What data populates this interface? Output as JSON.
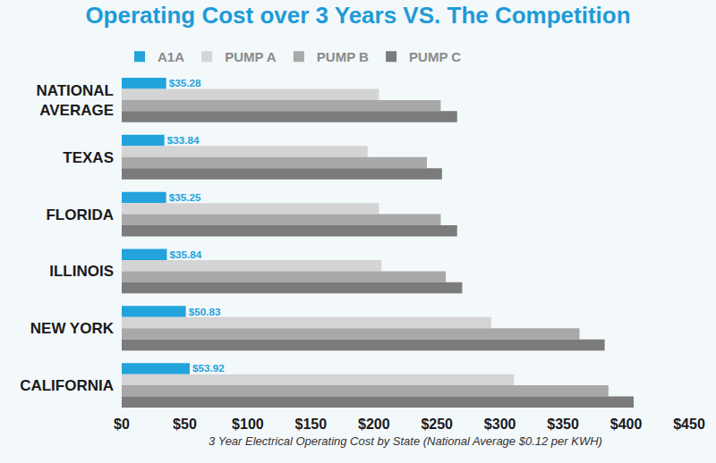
{
  "chart_data": {
    "type": "bar",
    "orientation": "horizontal",
    "title": "Operating Cost over 3 Years VS. The Competition",
    "x_label": "3 Year Electrical Operating Cost by State (National Average $0.12 per KWH)",
    "categories": [
      "NATIONAL AVERAGE",
      "TEXAS",
      "FLORIDA",
      "ILLINOIS",
      "NEW YORK",
      "CALIFORNIA"
    ],
    "series": [
      {
        "name": "A1A",
        "color": "#23a3dc",
        "values": [
          35.28,
          33.84,
          35.25,
          35.84,
          50.83,
          53.92
        ],
        "data_labels": true,
        "value_labels": [
          "$35.28",
          "$33.84",
          "$35.25",
          "$35.84",
          "$50.83",
          "$53.92"
        ]
      },
      {
        "name": "PUMP A",
        "color": "#d4d4d4",
        "values": [
          204,
          195,
          204,
          206,
          293,
          311
        ]
      },
      {
        "name": "PUMP B",
        "color": "#a8a8a8",
        "values": [
          253,
          242,
          253,
          257,
          363,
          386
        ]
      },
      {
        "name": "PUMP C",
        "color": "#7b7b7b",
        "values": [
          266,
          254,
          266,
          270,
          383,
          406
        ]
      }
    ],
    "xlim": [
      0,
      450
    ],
    "xticks": [
      {
        "value": 0,
        "label": "$0"
      },
      {
        "value": 50,
        "label": "$50"
      },
      {
        "value": 100,
        "label": "$100"
      },
      {
        "value": 150,
        "label": "$150"
      },
      {
        "value": 200,
        "label": "$200"
      },
      {
        "value": 250,
        "label": "$250"
      },
      {
        "value": 300,
        "label": "$300"
      },
      {
        "value": 350,
        "label": "$350"
      },
      {
        "value": 400,
        "label": "$400"
      },
      {
        "value": 450,
        "label": "$450"
      }
    ],
    "grid": false,
    "legend": "top"
  }
}
